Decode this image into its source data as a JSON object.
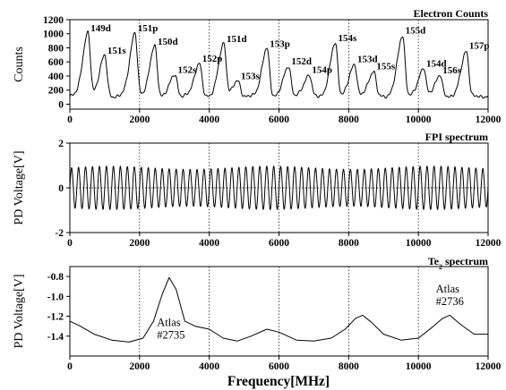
{
  "chart_data": [
    {
      "type": "line",
      "title": "Electron Counts",
      "xlabel": "",
      "ylabel": "Counts",
      "xlim": [
        0,
        12000
      ],
      "ylim": [
        -70,
        1200
      ],
      "xticks": [
        "0",
        "2000",
        "4000",
        "6000",
        "8000",
        "10000",
        "12000"
      ],
      "yticks": [
        "0",
        "200",
        "400",
        "600",
        "800",
        "1000",
        "1200"
      ],
      "grid_x": [
        2000,
        4000,
        6000,
        8000,
        10000
      ],
      "baseline": 110,
      "peaks": [
        {
          "label": "149d",
          "x": 520,
          "y": 1010
        },
        {
          "label": "151s",
          "x": 1000,
          "y": 690
        },
        {
          "label": "151p",
          "x": 1870,
          "y": 1010
        },
        {
          "label": "150d",
          "x": 2440,
          "y": 820
        },
        {
          "label": "152s",
          "x": 3020,
          "y": 420
        },
        {
          "label": "152p",
          "x": 3720,
          "y": 580
        },
        {
          "label": "151d",
          "x": 4420,
          "y": 860
        },
        {
          "label": "153s",
          "x": 4830,
          "y": 330
        },
        {
          "label": "153p",
          "x": 5660,
          "y": 790
        },
        {
          "label": "152d",
          "x": 6280,
          "y": 540
        },
        {
          "label": "154p",
          "x": 6870,
          "y": 420
        },
        {
          "label": "154s",
          "x": 7620,
          "y": 870
        },
        {
          "label": "153d",
          "x": 8170,
          "y": 570
        },
        {
          "label": "155s",
          "x": 8720,
          "y": 470
        },
        {
          "label": "155d",
          "x": 9550,
          "y": 980
        },
        {
          "label": "154d",
          "x": 10150,
          "y": 510
        },
        {
          "label": "156s",
          "x": 10620,
          "y": 410
        },
        {
          "label": "157p",
          "x": 11380,
          "y": 760
        }
      ]
    },
    {
      "type": "line",
      "title": "FPI spectrum",
      "xlabel": "",
      "ylabel": "PD Voltage[V]",
      "xlim": [
        0,
        12000
      ],
      "ylim": [
        -2,
        2
      ],
      "xticks": [
        "0",
        "2000",
        "4000",
        "6000",
        "8000",
        "10000",
        "12000"
      ],
      "yticks": [
        "-2",
        "0",
        "2"
      ],
      "grid_x": [
        2000,
        4000,
        6000,
        8000,
        10000
      ],
      "grid_y": [
        -2,
        0,
        2
      ],
      "period_mhz": 200,
      "amplitude_v": 0.9
    },
    {
      "type": "line",
      "title": "Te2 spectrum",
      "xlabel": "Frequency[MHz]",
      "ylabel": "PD Voltage[V]",
      "xlim": [
        0,
        12000
      ],
      "ylim": [
        -1.6,
        -0.7
      ],
      "xticks": [
        "0",
        "2000",
        "4000",
        "6000",
        "8000",
        "10000",
        "12000"
      ],
      "yticks": [
        "-0.8",
        "-1.0",
        "-1.2",
        "-1.4"
      ],
      "grid_x": [
        2000,
        4000,
        6000,
        8000,
        10000
      ],
      "points": [
        [
          0,
          -1.25
        ],
        [
          300,
          -1.3
        ],
        [
          700,
          -1.38
        ],
        [
          1200,
          -1.44
        ],
        [
          1700,
          -1.46
        ],
        [
          2100,
          -1.42
        ],
        [
          2400,
          -1.25
        ],
        [
          2650,
          -0.98
        ],
        [
          2850,
          -0.81
        ],
        [
          3050,
          -0.93
        ],
        [
          3300,
          -1.25
        ],
        [
          3600,
          -1.3
        ],
        [
          4000,
          -1.33
        ],
        [
          4400,
          -1.42
        ],
        [
          4800,
          -1.45
        ],
        [
          5200,
          -1.4
        ],
        [
          5650,
          -1.33
        ],
        [
          6000,
          -1.36
        ],
        [
          6500,
          -1.44
        ],
        [
          7000,
          -1.45
        ],
        [
          7500,
          -1.42
        ],
        [
          7900,
          -1.33
        ],
        [
          8200,
          -1.22
        ],
        [
          8400,
          -1.19
        ],
        [
          8650,
          -1.26
        ],
        [
          9000,
          -1.38
        ],
        [
          9500,
          -1.44
        ],
        [
          10000,
          -1.42
        ],
        [
          10400,
          -1.31
        ],
        [
          10700,
          -1.22
        ],
        [
          10900,
          -1.19
        ],
        [
          11200,
          -1.28
        ],
        [
          11600,
          -1.38
        ],
        [
          12000,
          -1.38
        ]
      ],
      "annotations": [
        {
          "lines": [
            "Atlas",
            "#2735"
          ],
          "x": 2500,
          "y": -1.3
        },
        {
          "lines": [
            "Atlas",
            "#2736"
          ],
          "x": 10500,
          "y": -0.96
        }
      ]
    }
  ]
}
